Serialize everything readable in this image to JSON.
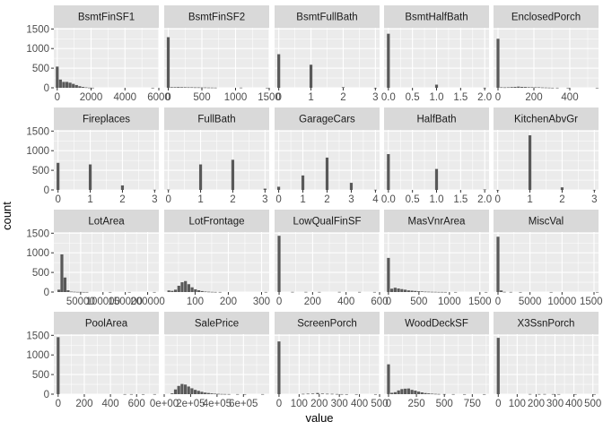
{
  "chart_data": {
    "type": "bar",
    "chart_kind": "faceted histogram",
    "xlabel": "value",
    "ylabel": "count",
    "y_ticks": [
      0,
      500,
      1000,
      1500
    ],
    "ylim": [
      0,
      1530
    ],
    "grid": true,
    "colors": {
      "panel_bg": "#ebebeb",
      "strip_bg": "#d9d9d9",
      "grid_major": "#ffffff",
      "bar_fill": "#595959",
      "tick_text": "#4d4d4d"
    },
    "facets": [
      {
        "name": "BsmtFinSF1",
        "xlim": [
          -200,
          6000
        ],
        "x_tick_values": [
          0,
          2000,
          4000,
          6000
        ],
        "x_tick_labels": [
          "0",
          "2000",
          "4000",
          "6000"
        ],
        "bins": [
          [
            0,
            540
          ],
          [
            190,
            210
          ],
          [
            380,
            150
          ],
          [
            570,
            150
          ],
          [
            760,
            130
          ],
          [
            950,
            100
          ],
          [
            1140,
            70
          ],
          [
            1330,
            40
          ],
          [
            1520,
            22
          ],
          [
            1710,
            10
          ],
          [
            1900,
            4
          ],
          [
            2090,
            2
          ],
          [
            5640,
            1
          ]
        ]
      },
      {
        "name": "BsmtFinSF2",
        "xlim": [
          -60,
          1500
        ],
        "x_tick_values": [
          0,
          500,
          1000,
          1500
        ],
        "x_tick_labels": [
          "0",
          "500",
          "1000",
          "1500"
        ],
        "bins": [
          [
            0,
            1290
          ],
          [
            50,
            15
          ],
          [
            100,
            15
          ],
          [
            150,
            18
          ],
          [
            200,
            15
          ],
          [
            250,
            14
          ],
          [
            300,
            12
          ],
          [
            350,
            12
          ],
          [
            400,
            10
          ],
          [
            450,
            10
          ],
          [
            500,
            8
          ],
          [
            550,
            8
          ],
          [
            600,
            6
          ],
          [
            650,
            5
          ],
          [
            700,
            4
          ],
          [
            1080,
            4
          ],
          [
            1470,
            1
          ]
        ]
      },
      {
        "name": "BsmtFullBath",
        "xlim": [
          -0.13,
          3.13
        ],
        "x_tick_values": [
          0,
          1,
          2,
          3
        ],
        "x_tick_labels": [
          "0",
          "1",
          "2",
          "3"
        ],
        "bins": [
          [
            0,
            856
          ],
          [
            1,
            588
          ],
          [
            2,
            15
          ],
          [
            3,
            1
          ]
        ]
      },
      {
        "name": "BsmtHalfBath",
        "xlim": [
          -0.09,
          2.09
        ],
        "x_tick_values": [
          0,
          0.5,
          1,
          1.5,
          2
        ],
        "x_tick_labels": [
          "0.0",
          "0.5",
          "1.0",
          "1.5",
          "2.0"
        ],
        "bins": [
          [
            0,
            1378
          ],
          [
            1,
            80
          ],
          [
            2,
            2
          ]
        ]
      },
      {
        "name": "EnclosedPorch",
        "xlim": [
          -25,
          560
        ],
        "x_tick_values": [
          0,
          200,
          400
        ],
        "x_tick_labels": [
          "0",
          "200",
          "400"
        ],
        "bins": [
          [
            0,
            1250
          ],
          [
            19,
            12
          ],
          [
            38,
            10
          ],
          [
            57,
            12
          ],
          [
            76,
            18
          ],
          [
            95,
            22
          ],
          [
            114,
            30
          ],
          [
            133,
            22
          ],
          [
            152,
            20
          ],
          [
            171,
            14
          ],
          [
            190,
            14
          ],
          [
            209,
            12
          ],
          [
            228,
            12
          ],
          [
            247,
            8
          ],
          [
            266,
            6
          ],
          [
            285,
            4
          ],
          [
            304,
            2
          ],
          [
            330,
            2
          ],
          [
            390,
            1
          ],
          [
            552,
            1
          ]
        ]
      },
      {
        "name": "Fireplaces",
        "xlim": [
          -0.13,
          3.13
        ],
        "x_tick_values": [
          0,
          1,
          2,
          3
        ],
        "x_tick_labels": [
          "0",
          "1",
          "2",
          "3"
        ],
        "bins": [
          [
            0,
            690
          ],
          [
            1,
            650
          ],
          [
            2,
            115
          ],
          [
            3,
            5
          ]
        ]
      },
      {
        "name": "FullBath",
        "xlim": [
          -0.13,
          3.13
        ],
        "x_tick_values": [
          0,
          1,
          2,
          3
        ],
        "x_tick_labels": [
          "0",
          "1",
          "2",
          "3"
        ],
        "bins": [
          [
            0,
            9
          ],
          [
            1,
            650
          ],
          [
            2,
            768
          ],
          [
            3,
            33
          ]
        ]
      },
      {
        "name": "GarageCars",
        "xlim": [
          -0.17,
          4.17
        ],
        "x_tick_values": [
          0,
          1,
          2,
          3,
          4
        ],
        "x_tick_labels": [
          "0",
          "1",
          "2",
          "3",
          "4"
        ],
        "bins": [
          [
            0,
            81
          ],
          [
            1,
            369
          ],
          [
            2,
            824
          ],
          [
            3,
            181
          ],
          [
            4,
            5
          ]
        ]
      },
      {
        "name": "HalfBath",
        "xlim": [
          -0.09,
          2.09
        ],
        "x_tick_values": [
          0,
          0.5,
          1,
          1.5,
          2
        ],
        "x_tick_labels": [
          "0.0",
          "0.5",
          "1.0",
          "1.5",
          "2.0"
        ],
        "bins": [
          [
            0,
            913
          ],
          [
            1,
            535
          ],
          [
            2,
            12
          ]
        ]
      },
      {
        "name": "KitchenAbvGr",
        "xlim": [
          -0.13,
          3.13
        ],
        "x_tick_values": [
          0,
          1,
          2,
          3
        ],
        "x_tick_labels": [
          "0",
          "1",
          "2",
          "3"
        ],
        "bins": [
          [
            0,
            1
          ],
          [
            1,
            1392
          ],
          [
            2,
            65
          ],
          [
            3,
            2
          ]
        ]
      },
      {
        "name": "LotArea",
        "xlim": [
          -10000,
          225000
        ],
        "x_tick_values": [
          50000,
          100000,
          150000,
          200000
        ],
        "x_tick_labels": [
          "50000",
          "100000",
          "150000",
          "200000"
        ],
        "bins": [
          [
            1300,
            60
          ],
          [
            8000,
            960
          ],
          [
            15000,
            370
          ],
          [
            22000,
            45
          ],
          [
            29000,
            10
          ],
          [
            36000,
            7
          ],
          [
            43000,
            4
          ],
          [
            50000,
            4
          ],
          [
            57000,
            2
          ],
          [
            64000,
            2
          ],
          [
            116000,
            1
          ],
          [
            159000,
            1
          ],
          [
            215000,
            1
          ]
        ]
      },
      {
        "name": "LotFrontage",
        "xlim": [
          7,
          323
        ],
        "x_tick_values": [
          100,
          200,
          300
        ],
        "x_tick_labels": [
          "100",
          "200",
          "300"
        ],
        "bins": [
          [
            21,
            40
          ],
          [
            31,
            30
          ],
          [
            41,
            60
          ],
          [
            51,
            160
          ],
          [
            61,
            250
          ],
          [
            71,
            280
          ],
          [
            81,
            200
          ],
          [
            91,
            120
          ],
          [
            101,
            70
          ],
          [
            111,
            45
          ],
          [
            121,
            25
          ],
          [
            131,
            12
          ],
          [
            141,
            8
          ],
          [
            151,
            5
          ],
          [
            161,
            3
          ],
          [
            175,
            2
          ],
          [
            313,
            2
          ]
        ]
      },
      {
        "name": "LowQualFinSF",
        "xlim": [
          -27,
          600
        ],
        "x_tick_values": [
          0,
          200,
          400,
          600
        ],
        "x_tick_labels": [
          "0",
          "200",
          "400",
          "600"
        ],
        "bins": [
          [
            0,
            1434
          ],
          [
            80,
            4
          ],
          [
            160,
            4
          ],
          [
            240,
            3
          ],
          [
            360,
            4
          ],
          [
            480,
            3
          ],
          [
            570,
            2
          ]
        ]
      },
      {
        "name": "MasVnrArea",
        "xlim": [
          -72,
          1650
        ],
        "x_tick_values": [
          0,
          500,
          1000,
          1500
        ],
        "x_tick_labels": [
          "0",
          "500",
          "1000",
          "1500"
        ],
        "bins": [
          [
            0,
            870
          ],
          [
            55,
            85
          ],
          [
            110,
            110
          ],
          [
            165,
            90
          ],
          [
            220,
            75
          ],
          [
            275,
            60
          ],
          [
            330,
            42
          ],
          [
            385,
            35
          ],
          [
            440,
            28
          ],
          [
            495,
            20
          ],
          [
            550,
            15
          ],
          [
            605,
            10
          ],
          [
            660,
            8
          ],
          [
            715,
            6
          ],
          [
            770,
            5
          ],
          [
            825,
            3
          ],
          [
            880,
            3
          ],
          [
            935,
            2
          ],
          [
            1100,
            1
          ],
          [
            1600,
            1
          ]
        ]
      },
      {
        "name": "MiscVal",
        "xlim": [
          -700,
          15700
        ],
        "x_tick_values": [
          0,
          5000,
          10000,
          15000
        ],
        "x_tick_labels": [
          "0",
          "5000",
          "10000",
          "15000"
        ],
        "bins": [
          [
            0,
            1410
          ],
          [
            500,
            40
          ],
          [
            1000,
            5
          ],
          [
            2000,
            3
          ],
          [
            3500,
            1
          ],
          [
            8300,
            1
          ],
          [
            15500,
            1
          ]
        ]
      },
      {
        "name": "PoolArea",
        "xlim": [
          -33,
          770
        ],
        "x_tick_values": [
          0,
          200,
          400,
          600
        ],
        "x_tick_labels": [
          "0",
          "200",
          "400",
          "600"
        ],
        "bins": [
          [
            0,
            1453
          ],
          [
            510,
            2
          ],
          [
            560,
            2
          ],
          [
            650,
            1
          ],
          [
            738,
            2
          ]
        ]
      },
      {
        "name": "SalePrice",
        "xlim": [
          0,
          795000
        ],
        "x_tick_values": [
          0,
          200000,
          400000,
          600000
        ],
        "x_tick_labels": [
          "0e+00",
          "2e+05",
          "4e+05",
          "6e+05"
        ],
        "bins": [
          [
            60000,
            20
          ],
          [
            85000,
            120
          ],
          [
            110000,
            210
          ],
          [
            135000,
            260
          ],
          [
            160000,
            245
          ],
          [
            185000,
            195
          ],
          [
            210000,
            150
          ],
          [
            235000,
            110
          ],
          [
            260000,
            85
          ],
          [
            285000,
            60
          ],
          [
            310000,
            40
          ],
          [
            335000,
            30
          ],
          [
            360000,
            20
          ],
          [
            385000,
            12
          ],
          [
            410000,
            8
          ],
          [
            435000,
            5
          ],
          [
            460000,
            4
          ],
          [
            490000,
            3
          ],
          [
            555000,
            2
          ],
          [
            610000,
            1
          ],
          [
            745000,
            2
          ]
        ]
      },
      {
        "name": "ScreenPorch",
        "xlim": [
          -22,
          500
        ],
        "x_tick_values": [
          0,
          100,
          200,
          300,
          400,
          500
        ],
        "x_tick_labels": [
          "0",
          "100",
          "200",
          "300",
          "400",
          "500"
        ],
        "bins": [
          [
            0,
            1344
          ],
          [
            120,
            8
          ],
          [
            144,
            12
          ],
          [
            168,
            14
          ],
          [
            192,
            30
          ],
          [
            216,
            14
          ],
          [
            240,
            10
          ],
          [
            264,
            8
          ],
          [
            288,
            4
          ],
          [
            312,
            2
          ],
          [
            336,
            1
          ],
          [
            385,
            1
          ],
          [
            480,
            1
          ]
        ]
      },
      {
        "name": "WoodDeckSF",
        "xlim": [
          -40,
          900
        ],
        "x_tick_values": [
          0,
          250,
          500,
          750
        ],
        "x_tick_labels": [
          "0",
          "250",
          "500",
          "750"
        ],
        "bins": [
          [
            0,
            761
          ],
          [
            30,
            35
          ],
          [
            60,
            50
          ],
          [
            90,
            95
          ],
          [
            120,
            130
          ],
          [
            150,
            140
          ],
          [
            180,
            145
          ],
          [
            210,
            110
          ],
          [
            240,
            90
          ],
          [
            270,
            65
          ],
          [
            300,
            45
          ],
          [
            330,
            28
          ],
          [
            360,
            20
          ],
          [
            390,
            12
          ],
          [
            420,
            8
          ],
          [
            450,
            5
          ],
          [
            500,
            3
          ],
          [
            580,
            2
          ],
          [
            680,
            1
          ],
          [
            857,
            1
          ]
        ]
      },
      {
        "name": "X3SsnPorch",
        "xlim": [
          -25,
          530
        ],
        "x_tick_values": [
          0,
          100,
          200,
          300,
          400,
          500
        ],
        "x_tick_labels": [
          "0",
          "100",
          "200",
          "300",
          "400",
          "500"
        ],
        "bins": [
          [
            0,
            1436
          ],
          [
            168,
            4
          ],
          [
            216,
            3
          ],
          [
            245,
            4
          ],
          [
            290,
            3
          ],
          [
            320,
            2
          ],
          [
            407,
            1
          ],
          [
            508,
            1
          ]
        ]
      }
    ]
  }
}
